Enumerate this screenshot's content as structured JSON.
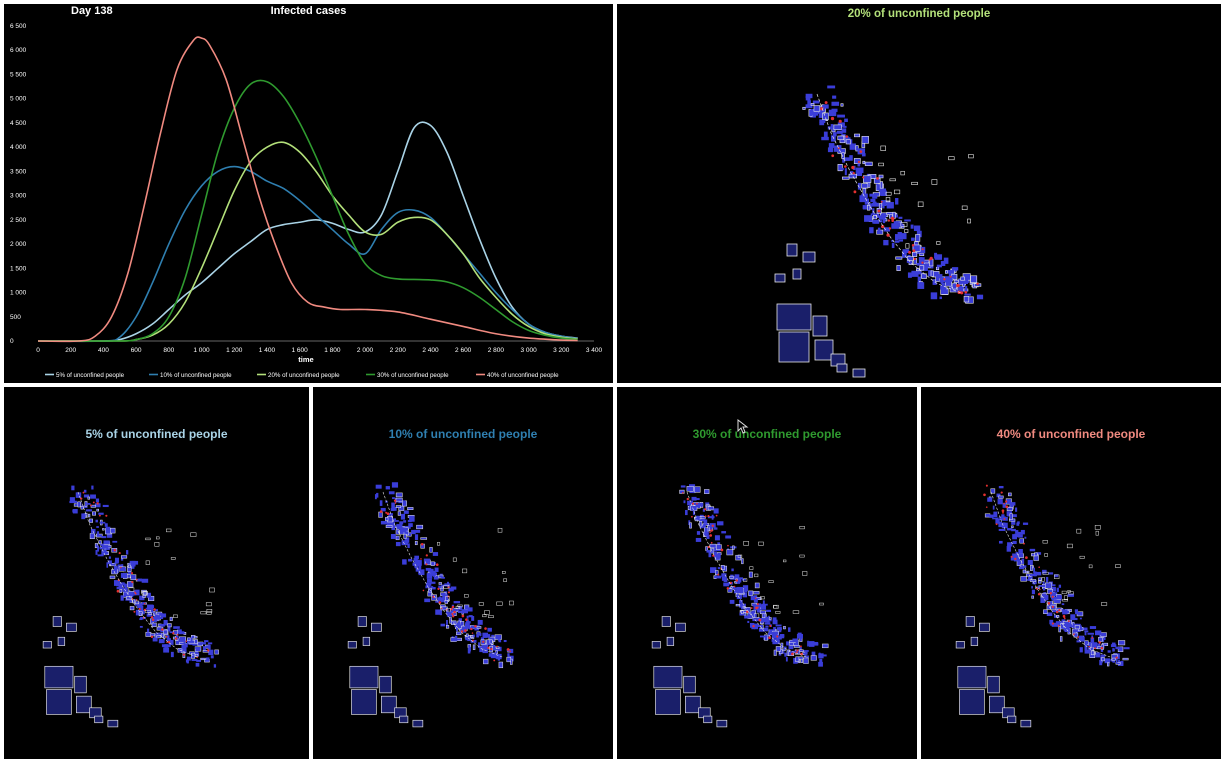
{
  "day_label": "Day 138",
  "colors": {
    "s5": "#a9d3e6",
    "s10": "#2f7fb0",
    "s20": "#b3e07a",
    "s30": "#2f9a2f",
    "s40": "#f08a80",
    "map_fill": "#3a3dd8",
    "map_outline": "#e8e8e8",
    "infected": "#e53030"
  },
  "panels": {
    "p20": "20% of unconfined people",
    "p5": "5% of unconfined people",
    "p10": "10% of unconfined people",
    "p30": "30% of unconfined people",
    "p40": "40% of unconfined people"
  },
  "chart_data": {
    "type": "line",
    "title": "Infected cases",
    "xlabel": "time",
    "ylabel": "",
    "xlim": [
      0,
      3400
    ],
    "ylim": [
      0,
      6500
    ],
    "x_ticks": [
      0,
      200,
      400,
      600,
      800,
      1000,
      1200,
      1400,
      1600,
      1800,
      2000,
      2200,
      2400,
      2600,
      2800,
      3000,
      3200,
      3400
    ],
    "x_tick_labels": [
      "0",
      "200",
      "400",
      "600",
      "800",
      "1 000",
      "1 200",
      "1 400",
      "1 600",
      "1 800",
      "2 000",
      "2 200",
      "2 400",
      "2 600",
      "2 800",
      "3 000",
      "3 200",
      "3 400"
    ],
    "y_ticks": [
      0,
      500,
      1000,
      1500,
      2000,
      2500,
      3000,
      3500,
      4000,
      4500,
      5000,
      5500,
      6000,
      6500
    ],
    "y_tick_labels": [
      "0",
      "500",
      "1 000",
      "1 500",
      "2 000",
      "2 500",
      "3 000",
      "3 500",
      "4 000",
      "4 500",
      "5 000",
      "5 500",
      "6 000",
      "6 500"
    ],
    "legend_position": "bottom",
    "grid": false,
    "series": [
      {
        "name": "5% of unconfined people",
        "color": "#a9d3e6",
        "x": [
          0,
          400,
          500,
          600,
          700,
          800,
          900,
          1000,
          1100,
          1200,
          1300,
          1400,
          1500,
          1600,
          1700,
          1800,
          1900,
          2000,
          2100,
          2200,
          2300,
          2400,
          2500,
          2600,
          2700,
          2800,
          2900,
          3000,
          3100,
          3200,
          3300
        ],
        "y": [
          0,
          0,
          30,
          150,
          350,
          650,
          950,
          1200,
          1500,
          1800,
          2050,
          2300,
          2400,
          2450,
          2500,
          2430,
          2300,
          2250,
          2600,
          3500,
          4400,
          4450,
          3900,
          3000,
          2100,
          1300,
          700,
          350,
          180,
          100,
          60
        ]
      },
      {
        "name": "10% of unconfined people",
        "color": "#2f7fb0",
        "x": [
          0,
          400,
          500,
          600,
          700,
          800,
          900,
          1000,
          1100,
          1200,
          1300,
          1400,
          1500,
          1600,
          1700,
          1800,
          1900,
          2000,
          2100,
          2200,
          2300,
          2400,
          2500,
          2600,
          2700,
          2800,
          2900,
          3000,
          3100,
          3200,
          3300
        ],
        "y": [
          0,
          0,
          80,
          500,
          1200,
          2000,
          2700,
          3200,
          3500,
          3600,
          3500,
          3300,
          3150,
          2900,
          2600,
          2300,
          2000,
          1800,
          2300,
          2650,
          2700,
          2550,
          2200,
          1800,
          1400,
          1000,
          650,
          350,
          180,
          100,
          50
        ]
      },
      {
        "name": "20% of unconfined people",
        "color": "#b3e07a",
        "x": [
          0,
          500,
          600,
          700,
          800,
          900,
          1000,
          1100,
          1200,
          1300,
          1400,
          1500,
          1600,
          1700,
          1800,
          1900,
          2000,
          2100,
          2200,
          2300,
          2400,
          2500,
          2600,
          2700,
          2800,
          2900,
          3000,
          3100,
          3200,
          3300
        ],
        "y": [
          0,
          0,
          30,
          120,
          350,
          800,
          1500,
          2300,
          3100,
          3700,
          4000,
          4100,
          3900,
          3500,
          3000,
          2600,
          2250,
          2200,
          2450,
          2550,
          2500,
          2200,
          1800,
          1300,
          900,
          550,
          300,
          150,
          80,
          40
        ]
      },
      {
        "name": "30% of unconfined people",
        "color": "#2f9a2f",
        "x": [
          0,
          500,
          600,
          700,
          800,
          900,
          1000,
          1100,
          1200,
          1300,
          1400,
          1500,
          1600,
          1700,
          1800,
          1900,
          2000,
          2100,
          2200,
          2300,
          2400,
          2500,
          2600,
          2700,
          2800,
          2900,
          3000,
          3100,
          3200,
          3300
        ],
        "y": [
          0,
          0,
          30,
          150,
          500,
          1300,
          2600,
          3900,
          4800,
          5300,
          5350,
          5050,
          4500,
          3800,
          3000,
          2200,
          1600,
          1350,
          1280,
          1270,
          1260,
          1220,
          1100,
          900,
          650,
          400,
          220,
          120,
          60,
          30
        ]
      },
      {
        "name": "40% of unconfined people",
        "color": "#f08a80",
        "x": [
          0,
          250,
          350,
          450,
          550,
          650,
          750,
          850,
          950,
          1000,
          1050,
          1150,
          1250,
          1350,
          1450,
          1550,
          1650,
          1750,
          1850,
          2000,
          2200,
          2400,
          2600,
          2800,
          3000,
          3200,
          3300
        ],
        "y": [
          0,
          0,
          100,
          500,
          1400,
          2800,
          4300,
          5600,
          6200,
          6250,
          6100,
          5400,
          4200,
          3000,
          2000,
          1200,
          800,
          700,
          650,
          650,
          600,
          450,
          300,
          150,
          60,
          20,
          10
        ]
      }
    ]
  }
}
